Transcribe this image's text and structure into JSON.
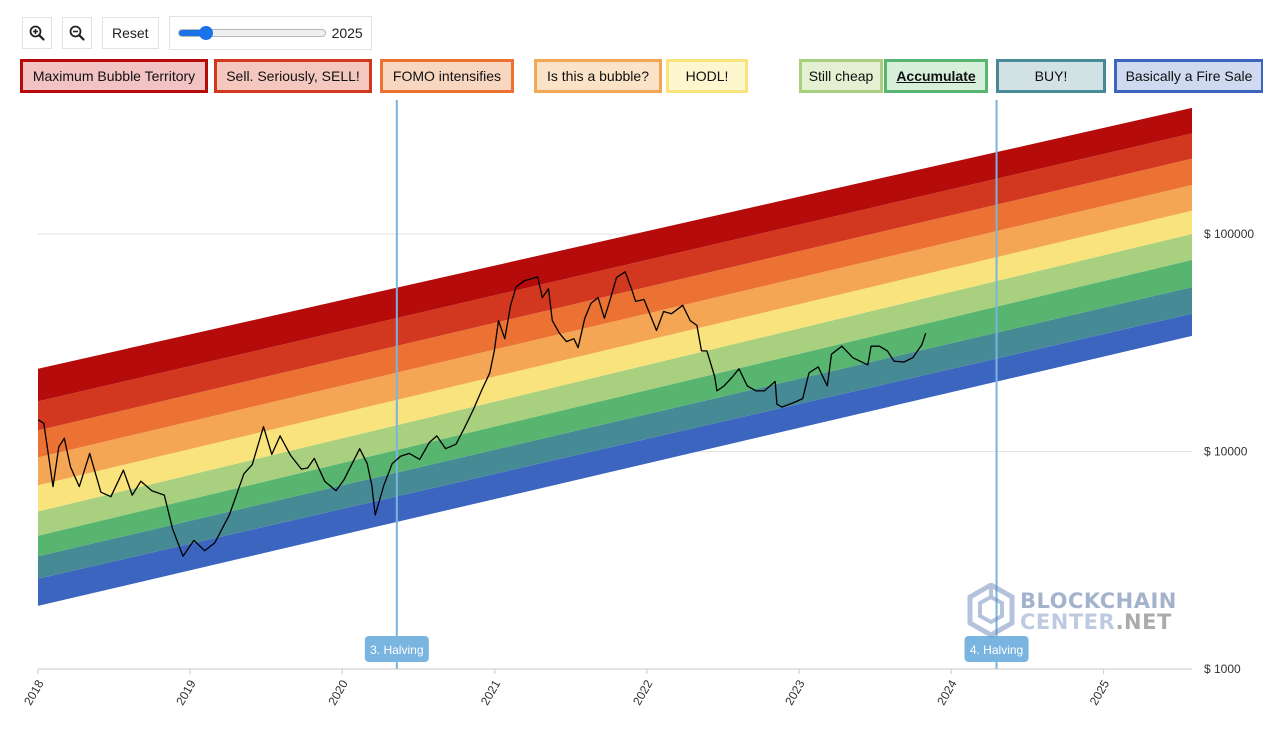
{
  "toolbar": {
    "zoom_in_icon": "magnifier-plus-icon",
    "zoom_out_icon": "magnifier-minus-icon",
    "reset_label": "Reset",
    "slider_value": "2025",
    "slider_fraction": 0.19
  },
  "legend": [
    {
      "label": "Maximum Bubble Territory",
      "bg": "#f3c2c2",
      "border": "#b50b0b",
      "active": false
    },
    {
      "label": "Sell. Seriously, SELL!",
      "bg": "#f4c8bf",
      "border": "#d2381f",
      "active": false
    },
    {
      "label": "FOMO intensifies",
      "bg": "#f8d7c1",
      "border": "#ec7233",
      "active": false
    },
    {
      "label": "Is this a bubble?",
      "bg": "#fbe3c8",
      "border": "#f4a654",
      "active": false
    },
    {
      "label": "HODL!",
      "bg": "#fdf6cf",
      "border": "#f8e37c",
      "active": false
    },
    {
      "label": "Still cheap",
      "bg": "#e3f0d2",
      "border": "#a8d07e",
      "active": false
    },
    {
      "label": "Accumulate",
      "bg": "#d6efd9",
      "border": "#57b56f",
      "active": true
    },
    {
      "label": "BUY!",
      "bg": "#d2e2e4",
      "border": "#468a96",
      "active": false
    },
    {
      "label": "Basically a Fire Sale",
      "bg": "#cfdaf0",
      "border": "#3c65c0",
      "active": false
    }
  ],
  "chart_data": {
    "type": "area",
    "xlabel": "",
    "ylabel": "",
    "y_scale": "log",
    "ylim": [
      1000,
      160000
    ],
    "xlim": [
      "2018-01-01",
      "2025-08-01"
    ],
    "x_ticks": [
      "2018",
      "2019",
      "2020",
      "2021",
      "2022",
      "2023",
      "2024",
      "2025"
    ],
    "y_ticks": [
      {
        "value": 1000,
        "label": "$ 1000"
      },
      {
        "value": 10000,
        "label": "$ 10000"
      },
      {
        "value": 100000,
        "label": "$ 100000"
      }
    ],
    "grid": true,
    "rainbow_bands": {
      "x": [
        "2018-01-01",
        "2025-08-01"
      ],
      "boundaries": [
        {
          "name": "Basically a Fire Sale (low)",
          "values": [
            1950,
            34000
          ]
        },
        {
          "name": "BUY!",
          "values": [
            2600,
            43000
          ]
        },
        {
          "name": "Accumulate",
          "values": [
            3300,
            57000
          ]
        },
        {
          "name": "Still cheap",
          "values": [
            4100,
            76000
          ]
        },
        {
          "name": "HODL!",
          "values": [
            5300,
            100000
          ]
        },
        {
          "name": "Is this a bubble?",
          "values": [
            7000,
            128000
          ]
        },
        {
          "name": "FOMO intensifies",
          "values": [
            9400,
            168000
          ]
        },
        {
          "name": "Sell. Seriously, SELL!",
          "values": [
            12500,
            222000
          ]
        },
        {
          "name": "Maximum Bubble Territory",
          "values": [
            17000,
            290000
          ]
        },
        {
          "name": "Maximum Bubble Territory (top)",
          "values": [
            24000,
            380000
          ]
        }
      ],
      "colors": [
        "#3c65c0",
        "#468a96",
        "#57b56f",
        "#a8d07e",
        "#f8e37c",
        "#f4a654",
        "#ec7233",
        "#d2381f",
        "#b50b0b"
      ]
    },
    "halvings": [
      {
        "label": "3. Halving",
        "date": "2020-05-11"
      },
      {
        "label": "4. Halving",
        "date": "2024-04-19"
      }
    ],
    "series": [
      {
        "x": [
          "2018-01-01",
          "2018-01-15",
          "2018-02-06",
          "2018-02-20",
          "2018-03-05",
          "2018-03-20",
          "2018-04-10",
          "2018-05-05",
          "2018-06-01",
          "2018-06-25",
          "2018-07-25",
          "2018-08-15",
          "2018-09-05",
          "2018-10-01",
          "2018-10-31",
          "2018-11-20",
          "2018-12-15",
          "2019-01-10",
          "2019-02-05",
          "2019-03-01",
          "2019-04-05",
          "2019-05-10",
          "2019-05-30",
          "2019-06-26",
          "2019-07-16",
          "2019-08-05",
          "2019-08-30",
          "2019-09-25",
          "2019-10-10",
          "2019-10-26",
          "2019-11-20",
          "2019-12-17",
          "2020-01-05",
          "2020-02-12",
          "2020-03-01",
          "2020-03-12",
          "2020-03-20",
          "2020-04-10",
          "2020-04-30",
          "2020-05-20",
          "2020-06-10",
          "2020-07-05",
          "2020-07-28",
          "2020-08-15",
          "2020-09-05",
          "2020-09-30",
          "2020-10-20",
          "2020-11-10",
          "2020-11-30",
          "2020-12-20",
          "2020-12-31",
          "2021-01-10",
          "2021-01-25",
          "2021-02-08",
          "2021-02-21",
          "2021-03-13",
          "2021-04-14",
          "2021-04-25",
          "2021-05-10",
          "2021-05-19",
          "2021-06-05",
          "2021-06-22",
          "2021-07-10",
          "2021-07-20",
          "2021-08-05",
          "2021-08-20",
          "2021-09-06",
          "2021-09-21",
          "2021-10-05",
          "2021-10-20",
          "2021-11-10",
          "2021-11-25",
          "2021-12-05",
          "2021-12-25",
          "2022-01-10",
          "2022-01-24",
          "2022-02-10",
          "2022-03-01",
          "2022-03-28",
          "2022-04-15",
          "2022-05-01",
          "2022-05-12",
          "2022-05-25",
          "2022-06-13",
          "2022-06-18",
          "2022-07-05",
          "2022-07-25",
          "2022-08-10",
          "2022-08-30",
          "2022-09-20",
          "2022-10-10",
          "2022-11-05",
          "2022-11-09",
          "2022-11-21",
          "2022-12-20",
          "2023-01-10",
          "2023-01-25",
          "2023-02-16",
          "2023-03-10",
          "2023-03-20",
          "2023-04-14",
          "2023-05-10",
          "2023-06-15",
          "2023-06-23",
          "2023-07-13",
          "2023-08-01",
          "2023-08-17",
          "2023-09-10",
          "2023-10-01",
          "2023-10-23",
          "2023-11-01"
        ],
        "y": [
          14000,
          13500,
          6900,
          10500,
          11500,
          8500,
          6900,
          9800,
          6500,
          6200,
          8200,
          6300,
          7300,
          6600,
          6300,
          4400,
          3300,
          3900,
          3500,
          3800,
          5100,
          7900,
          8700,
          13000,
          9700,
          11800,
          9600,
          8300,
          8400,
          9300,
          7300,
          6600,
          7400,
          10300,
          8800,
          7000,
          5100,
          7000,
          8800,
          9500,
          9800,
          9200,
          11000,
          11800,
          10300,
          10800,
          12800,
          15500,
          19000,
          23000,
          29000,
          40000,
          33000,
          47000,
          57000,
          61000,
          63500,
          51000,
          56000,
          40000,
          35000,
          32000,
          33000,
          30000,
          41000,
          48000,
          51000,
          41000,
          50000,
          63000,
          67000,
          56000,
          49000,
          50000,
          42000,
          36000,
          44000,
          43000,
          47000,
          40000,
          38000,
          29000,
          29000,
          22000,
          19000,
          20000,
          22000,
          24000,
          20000,
          19000,
          19000,
          21000,
          16500,
          16000,
          16800,
          17500,
          23000,
          24500,
          20000,
          28000,
          30500,
          27000,
          25000,
          30500,
          30500,
          29000,
          26000,
          25800,
          27000,
          31000,
          35000
        ],
        "color": "#000000"
      }
    ]
  },
  "watermark": {
    "line1": "BLOCKCHAIN",
    "line2a": "CENTER",
    "line2b": ".NET",
    "icon": "blockchain-center-logo-icon"
  }
}
